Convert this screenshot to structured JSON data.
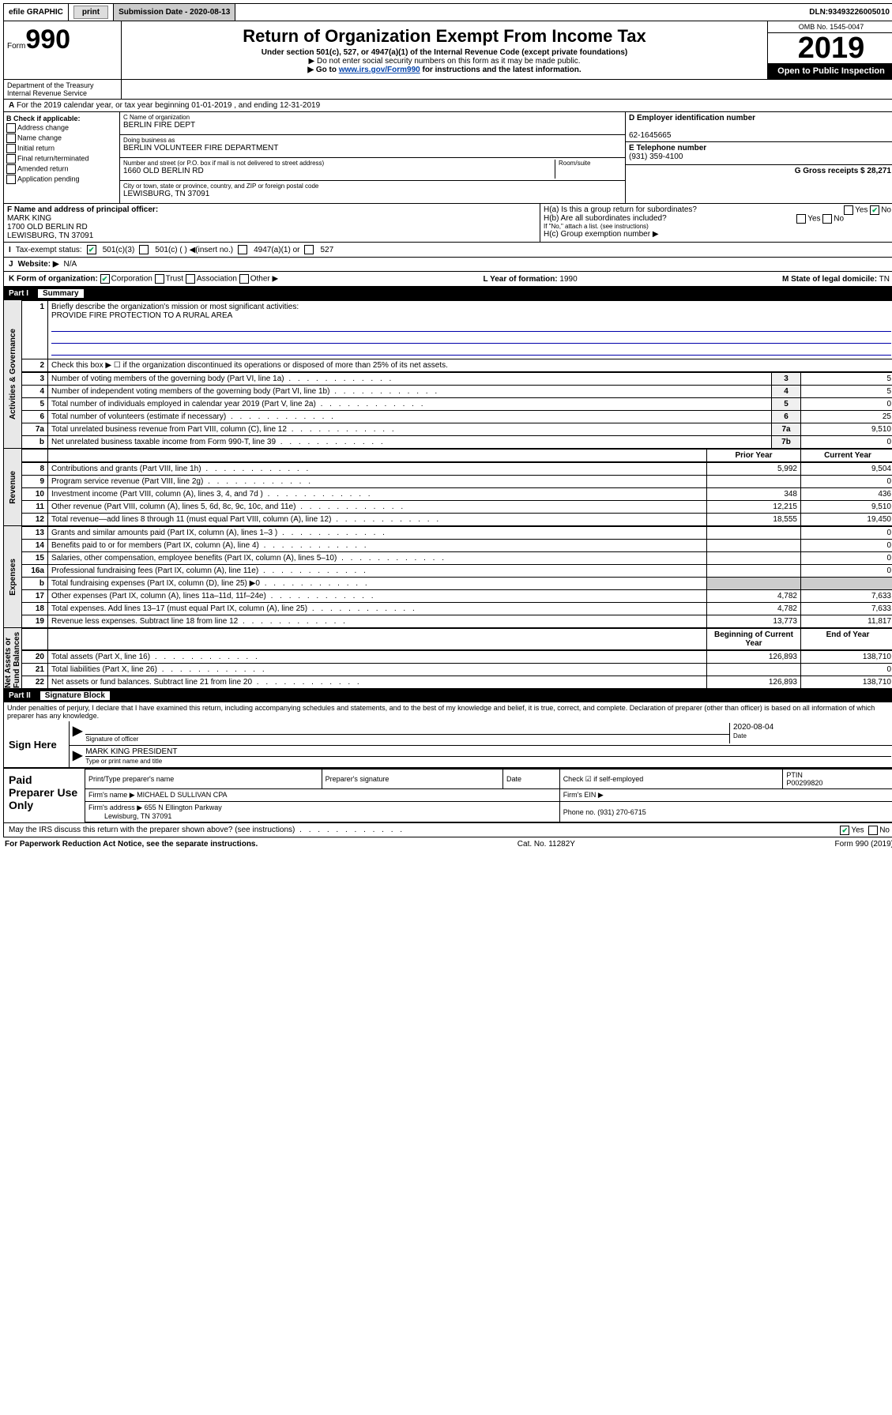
{
  "topbar": {
    "efile": "efile GRAPHIC",
    "print": "print",
    "subdate_label": "Submission Date - ",
    "subdate": "2020-08-13",
    "dln_label": "DLN: ",
    "dln": "93493226005010"
  },
  "header": {
    "form_prefix": "Form",
    "form_num": "990",
    "title": "Return of Organization Exempt From Income Tax",
    "subtitle": "Under section 501(c), 527, or 4947(a)(1) of the Internal Revenue Code (except private foundations)",
    "note1": "▶ Do not enter social security numbers on this form as it may be made public.",
    "note2_pre": "▶ Go to ",
    "note2_link": "www.irs.gov/Form990",
    "note2_post": " for instructions and the latest information.",
    "dept1": "Department of the Treasury",
    "dept2": "Internal Revenue Service",
    "omb": "OMB No. 1545-0047",
    "year": "2019",
    "inspect": "Open to Public Inspection"
  },
  "line_a": "For the 2019 calendar year, or tax year beginning 01-01-2019   , and ending 12-31-2019",
  "section_b": {
    "label": "B Check if applicable:",
    "opts": [
      "Address change",
      "Name change",
      "Initial return",
      "Final return/terminated",
      "Amended return",
      "Application pending"
    ]
  },
  "section_c": {
    "name_label": "C Name of organization",
    "name": "BERLIN FIRE DEPT",
    "dba_label": "Doing business as",
    "dba": "BERLIN VOLUNTEER FIRE DEPARTMENT",
    "addr_label": "Number and street (or P.O. box if mail is not delivered to street address)",
    "room_label": "Room/suite",
    "addr": "1660 OLD BERLIN RD",
    "city_label": "City or town, state or province, country, and ZIP or foreign postal code",
    "city": "LEWISBURG, TN  37091"
  },
  "section_d": {
    "label": "D Employer identification number",
    "val": "62-1645665"
  },
  "section_e": {
    "label": "E Telephone number",
    "val": "(931) 359-4100"
  },
  "section_g": {
    "label": "G Gross receipts $",
    "val": "28,271"
  },
  "section_f": {
    "label": "F  Name and address of principal officer:",
    "name": "MARK KING",
    "addr1": "1700 OLD BERLIN RD",
    "addr2": "LEWISBURG, TN  37091"
  },
  "section_h": {
    "ha": "H(a)  Is this a group return for subordinates?",
    "hb": "H(b)  Are all subordinates included?",
    "hb_note": "If \"No,\" attach a list. (see instructions)",
    "hc": "H(c)  Group exemption number ▶",
    "yes": "Yes",
    "no": "No"
  },
  "section_i": {
    "label": "Tax-exempt status:",
    "opts": [
      "501(c)(3)",
      "501(c) (  ) ◀(insert no.)",
      "4947(a)(1) or",
      "527"
    ]
  },
  "section_j": {
    "label": "Website: ▶",
    "val": "N/A"
  },
  "section_k": {
    "label": "K Form of organization:",
    "opts": [
      "Corporation",
      "Trust",
      "Association",
      "Other ▶"
    ],
    "l_label": "L Year of formation:",
    "l_val": "1990",
    "m_label": "M State of legal domicile:",
    "m_val": "TN"
  },
  "part1": {
    "tag": "Part I",
    "title": "Summary",
    "q1_label": "Briefly describe the organization's mission or most significant activities:",
    "q1_val": "PROVIDE FIRE PROTECTION TO A RURAL AREA",
    "q2": "Check this box ▶ ☐  if the organization discontinued its operations or disposed of more than 25% of its net assets.",
    "rows_ag": [
      {
        "n": "3",
        "t": "Number of voting members of the governing body (Part VI, line 1a)",
        "ln": "3",
        "v": "5"
      },
      {
        "n": "4",
        "t": "Number of independent voting members of the governing body (Part VI, line 1b)",
        "ln": "4",
        "v": "5"
      },
      {
        "n": "5",
        "t": "Total number of individuals employed in calendar year 2019 (Part V, line 2a)",
        "ln": "5",
        "v": "0"
      },
      {
        "n": "6",
        "t": "Total number of volunteers (estimate if necessary)",
        "ln": "6",
        "v": "25"
      },
      {
        "n": "7a",
        "t": "Total unrelated business revenue from Part VIII, column (C), line 12",
        "ln": "7a",
        "v": "9,510"
      },
      {
        "n": "b",
        "t": "Net unrelated business taxable income from Form 990-T, line 39",
        "ln": "7b",
        "v": "0"
      }
    ],
    "py_label": "Prior Year",
    "cy_label": "Current Year",
    "rows_rev": [
      {
        "n": "8",
        "t": "Contributions and grants (Part VIII, line 1h)",
        "py": "5,992",
        "cy": "9,504"
      },
      {
        "n": "9",
        "t": "Program service revenue (Part VIII, line 2g)",
        "py": "",
        "cy": "0"
      },
      {
        "n": "10",
        "t": "Investment income (Part VIII, column (A), lines 3, 4, and 7d )",
        "py": "348",
        "cy": "436"
      },
      {
        "n": "11",
        "t": "Other revenue (Part VIII, column (A), lines 5, 6d, 8c, 9c, 10c, and 11e)",
        "py": "12,215",
        "cy": "9,510"
      },
      {
        "n": "12",
        "t": "Total revenue—add lines 8 through 11 (must equal Part VIII, column (A), line 12)",
        "py": "18,555",
        "cy": "19,450"
      }
    ],
    "rows_exp": [
      {
        "n": "13",
        "t": "Grants and similar amounts paid (Part IX, column (A), lines 1–3 )",
        "py": "",
        "cy": "0"
      },
      {
        "n": "14",
        "t": "Benefits paid to or for members (Part IX, column (A), line 4)",
        "py": "",
        "cy": "0"
      },
      {
        "n": "15",
        "t": "Salaries, other compensation, employee benefits (Part IX, column (A), lines 5–10)",
        "py": "",
        "cy": "0"
      },
      {
        "n": "16a",
        "t": "Professional fundraising fees (Part IX, column (A), line 11e)",
        "py": "",
        "cy": "0"
      },
      {
        "n": "b",
        "t": "Total fundraising expenses (Part IX, column (D), line 25) ▶0",
        "py": "—",
        "cy": "—"
      },
      {
        "n": "17",
        "t": "Other expenses (Part IX, column (A), lines 11a–11d, 11f–24e)",
        "py": "4,782",
        "cy": "7,633"
      },
      {
        "n": "18",
        "t": "Total expenses. Add lines 13–17 (must equal Part IX, column (A), line 25)",
        "py": "4,782",
        "cy": "7,633"
      },
      {
        "n": "19",
        "t": "Revenue less expenses. Subtract line 18 from line 12",
        "py": "13,773",
        "cy": "11,817"
      }
    ],
    "bcy_label": "Beginning of Current Year",
    "eoy_label": "End of Year",
    "rows_na": [
      {
        "n": "20",
        "t": "Total assets (Part X, line 16)",
        "py": "126,893",
        "cy": "138,710"
      },
      {
        "n": "21",
        "t": "Total liabilities (Part X, line 26)",
        "py": "",
        "cy": "0"
      },
      {
        "n": "22",
        "t": "Net assets or fund balances. Subtract line 21 from line 20",
        "py": "126,893",
        "cy": "138,710"
      }
    ],
    "vlabels": {
      "ag": "Activities & Governance",
      "rev": "Revenue",
      "exp": "Expenses",
      "na": "Net Assets or Fund Balances"
    }
  },
  "part2": {
    "tag": "Part II",
    "title": "Signature Block",
    "perjury": "Under penalties of perjury, I declare that I have examined this return, including accompanying schedules and statements, and to the best of my knowledge and belief, it is true, correct, and complete. Declaration of preparer (other than officer) is based on all information of which preparer has any knowledge.",
    "sign_here": "Sign Here",
    "sig_officer": "Signature of officer",
    "sig_date": "2020-08-04",
    "date_lbl": "Date",
    "officer_name": "MARK KING  PRESIDENT",
    "type_name": "Type or print name and title",
    "paid": "Paid Preparer Use Only",
    "prep_name_lbl": "Print/Type preparer's name",
    "prep_sig_lbl": "Preparer's signature",
    "prep_date_lbl": "Date",
    "check_self": "Check ☑ if self-employed",
    "ptin_lbl": "PTIN",
    "ptin": "P00299820",
    "firm_name_lbl": "Firm's name    ▶",
    "firm_name": "MICHAEL D SULLIVAN CPA",
    "firm_ein_lbl": "Firm's EIN ▶",
    "firm_addr_lbl": "Firm's address ▶",
    "firm_addr": "655 N Ellington Parkway",
    "firm_city": "Lewisburg, TN  37091",
    "phone_lbl": "Phone no.",
    "phone": "(931) 270-6715",
    "discuss": "May the IRS discuss this return with the preparer shown above? (see instructions)",
    "yes": "Yes",
    "no": "No"
  },
  "footer": {
    "left": "For Paperwork Reduction Act Notice, see the separate instructions.",
    "mid": "Cat. No. 11282Y",
    "right": "Form 990 (2019)"
  }
}
